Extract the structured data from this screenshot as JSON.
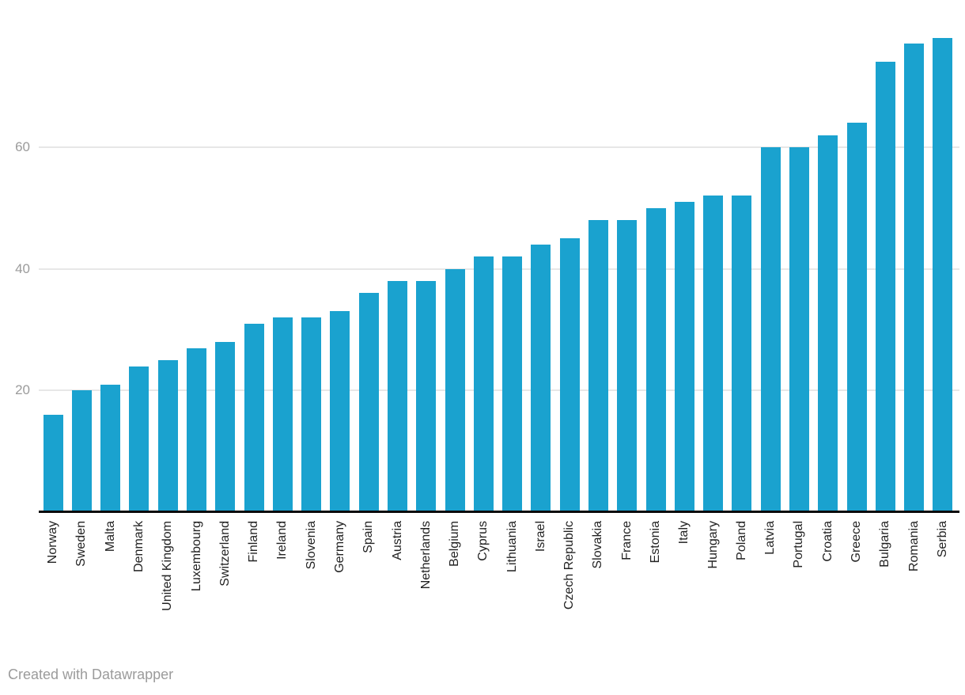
{
  "chart_data": {
    "type": "bar",
    "title": "",
    "xlabel": "",
    "ylabel": "",
    "categories": [
      "Norway",
      "Sweden",
      "Malta",
      "Denmark",
      "United Kingdom",
      "Luxembourg",
      "Switzerland",
      "Finland",
      "Ireland",
      "Slovenia",
      "Germany",
      "Spain",
      "Austria",
      "Netherlands",
      "Belgium",
      "Cyprus",
      "Lithuania",
      "Israel",
      "Czech Republic",
      "Slovakia",
      "France",
      "Estonia",
      "Italy",
      "Hungary",
      "Poland",
      "Latvia",
      "Portugal",
      "Croatia",
      "Greece",
      "Bulgaria",
      "Romania",
      "Serbia"
    ],
    "values": [
      16,
      20,
      21,
      24,
      25,
      27,
      28,
      31,
      32,
      32,
      33,
      36,
      38,
      38,
      40,
      42,
      42,
      44,
      45,
      48,
      48,
      50,
      51,
      52,
      52,
      60,
      60,
      62,
      64,
      74,
      77,
      78
    ],
    "yticks": [
      20,
      40,
      60
    ],
    "ylim": [
      0,
      84
    ],
    "grid": "horizontal",
    "legend": "none",
    "bar_color": "#1aa2cf"
  },
  "footer": {
    "credit": "Created with Datawrapper"
  },
  "colors": {
    "background": "#ffffff",
    "bar": "#1aa2cf",
    "gridline": "#e7e7e7",
    "axis_line": "#0a0a0a",
    "tick_label": "#9b9b9b",
    "category_label": "#222222",
    "credit_text": "#9b9b9b"
  }
}
